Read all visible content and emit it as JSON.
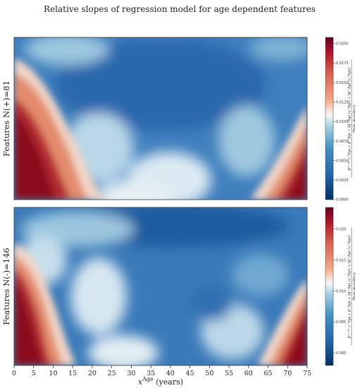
{
  "chart_data": {
    "type": "heatmap",
    "title": "Relative slopes of regression model for age dependent features",
    "xlabel_main": "x",
    "xlabel_sup": "Age",
    "xlabel_unit": " (years)",
    "x_ticks": [
      0,
      5,
      10,
      15,
      20,
      25,
      30,
      35,
      40,
      45,
      50,
      55,
      60,
      65,
      70,
      75
    ],
    "xlim": [
      0,
      75
    ],
    "colormap": "RdBu_r",
    "colors": {
      "low": "#1e5a9c",
      "mid": "#f7f7f7",
      "high": "#8b0a1f"
    },
    "panels": [
      {
        "ylabel": "Features N(+)=81",
        "colorbar_ticks": [
          "0.0000",
          "0.0025",
          "0.0050",
          "0.0075",
          "0.0100",
          "0.0125",
          "0.0150",
          "0.0175",
          "0.0200"
        ],
        "colorbar_range": [
          0.0,
          0.0208
        ],
        "colorbar_label_top": "βⁱⁿᵗ·ᵃᵍᵉ x^Age + β^Age + 2β^Age (x^Age) + 3β^Age (x^Age)²",
        "colorbar_label_bottom": "Mean abundancy"
      },
      {
        "ylabel": "Features N(-)=146",
        "colorbar_ticks": [
          "0.000",
          "0.005",
          "0.010",
          "0.015",
          "0.020"
        ],
        "colorbar_range": [
          -0.002,
          0.0235
        ],
        "colorbar_label_top": "βⁱⁿᵗ·ᵃᵍᵉ x^Age + β^Age + 2β^Age (x^Age) + 3β^Age (x^Age)²",
        "colorbar_label_bottom": "Mean abundancy"
      }
    ]
  }
}
